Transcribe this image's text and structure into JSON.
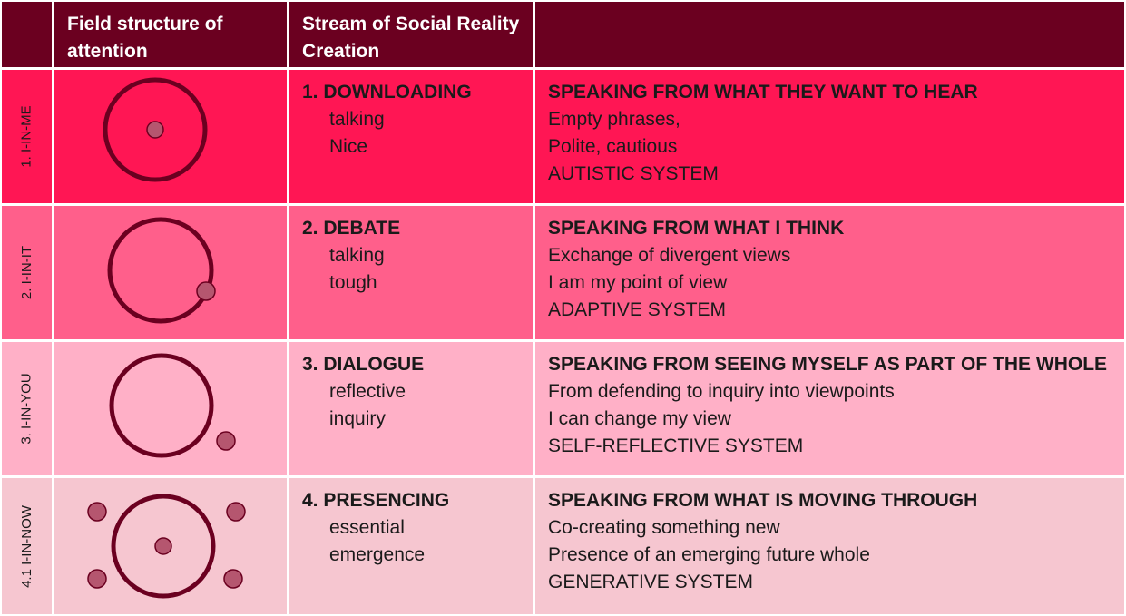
{
  "header": {
    "col1": "",
    "col2": "Field structure of attention",
    "col3": "Stream of Social Reality Creation",
    "col4": ""
  },
  "rows": [
    {
      "label": "1. I-IN-ME",
      "stream_title": "1. DOWNLOADING",
      "stream_lines": [
        "talking",
        "Nice"
      ],
      "speaking_title": "SPEAKING FROM WHAT THEY WANT TO HEAR",
      "speaking_lines": [
        "Empty phrases,",
        "Polite, cautious",
        "AUTISTIC SYSTEM"
      ]
    },
    {
      "label": "2. I-IN-IT",
      "stream_title": "2. DEBATE",
      "stream_lines": [
        "talking",
        "tough"
      ],
      "speaking_title": "SPEAKING FROM WHAT I THINK",
      "speaking_lines": [
        "Exchange of divergent views",
        "I am my point of view",
        "ADAPTIVE SYSTEM"
      ]
    },
    {
      "label": "3. I-IN-YOU",
      "stream_title": "3. DIALOGUE",
      "stream_lines": [
        "reflective",
        "inquiry"
      ],
      "speaking_title": "SPEAKING FROM SEEING MYSELF AS PART OF THE WHOLE",
      "speaking_lines": [
        "From defending to inquiry into viewpoints",
        "I can change my view",
        "SELF-REFLECTIVE SYSTEM"
      ]
    },
    {
      "label": "4.1 I-IN-NOW",
      "stream_title": "4. PRESENCING",
      "stream_lines": [
        "essential",
        "emergence"
      ],
      "speaking_title": "SPEAKING FROM WHAT IS MOVING THROUGH",
      "speaking_lines": [
        "Co-creating something new",
        "Presence of an emerging future whole",
        "GENERATIVE SYSTEM"
      ]
    }
  ],
  "colors": {
    "header_bg": "#6b0020",
    "row1_bg": "#ff1654",
    "row2_bg": "#ff5f8b",
    "row3_bg": "#ffb0c7",
    "row4_bg": "#f6c6d0",
    "circle_stroke": "#6b0020"
  },
  "diagram_icons": [
    "dot-inside-circle-icon",
    "dot-on-circle-edge-icon",
    "dot-outside-circle-icon",
    "dots-around-circle-icon"
  ]
}
